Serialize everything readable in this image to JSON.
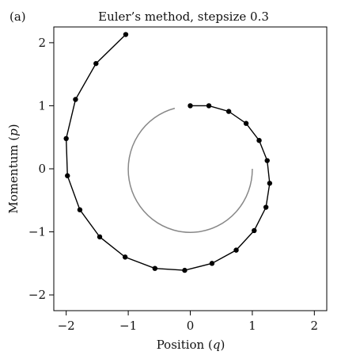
{
  "panel_label": "(a)",
  "chart_data": {
    "type": "line",
    "title": "Euler’s method, stepsize 0.3",
    "xlabel_text": "Position (",
    "xlabel_var": "q",
    "xlabel_end": ")",
    "ylabel_text": "Momentum (",
    "ylabel_var": "p",
    "ylabel_end": ")",
    "xlim": [
      -2.2,
      2.2
    ],
    "ylim": [
      -2.25,
      2.25
    ],
    "xticks": [
      -2,
      -1,
      0,
      1,
      2
    ],
    "yticks": [
      -2,
      -1,
      0,
      1,
      2
    ],
    "xtick_labels": [
      "−2",
      "−1",
      "0",
      "1",
      "2"
    ],
    "ytick_labels": [
      "−2",
      "−1",
      "0",
      "1",
      "2"
    ],
    "grid": false,
    "exact_circle": {
      "center": [
        0,
        0
      ],
      "radius": 1,
      "color": "#888888",
      "arc_start_point": [
        -0.25,
        0.96
      ],
      "arc_end_point": [
        1.0,
        0.0
      ]
    },
    "series": [
      {
        "color": "#000000",
        "x": [
          0.0,
          0.3,
          0.62,
          0.9,
          1.11,
          1.24,
          1.28,
          1.22,
          1.03,
          0.74,
          0.35,
          -0.09,
          -0.57,
          -1.05,
          -1.46,
          -1.78,
          -1.98,
          -2.0,
          -1.85,
          -1.52,
          -1.04
        ],
        "y": [
          1.0,
          1.0,
          0.91,
          0.72,
          0.45,
          0.13,
          -0.23,
          -0.61,
          -0.98,
          -1.29,
          -1.5,
          -1.61,
          -1.58,
          -1.4,
          -1.08,
          -0.65,
          -0.11,
          0.48,
          1.1,
          1.67,
          2.13
        ]
      }
    ]
  }
}
